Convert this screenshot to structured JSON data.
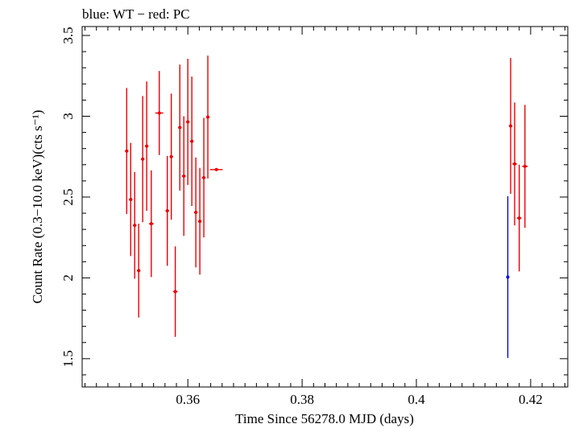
{
  "chart_data": {
    "type": "scatter",
    "title": "blue: WT − red: PC",
    "xlabel": "Time Since 56278.0 MJD (days)",
    "ylabel": "Count Rate (0.3−10.0 keV)(cts s⁻¹)",
    "xlim": [
      0.3415,
      0.4265
    ],
    "ylim": [
      1.325,
      3.555
    ],
    "x_ticks": [
      0.36,
      0.38,
      0.4,
      0.42
    ],
    "x_tick_labels": [
      "0.36",
      "0.38",
      "0.4",
      "0.42"
    ],
    "y_ticks": [
      1.5,
      2.0,
      2.5,
      3.0,
      3.5
    ],
    "y_tick_labels": [
      "1.5",
      "2",
      "2.5",
      "3",
      "3.5"
    ],
    "grid": false,
    "series": [
      {
        "color": "#ee0000",
        "points": [
          {
            "x": 0.3493,
            "y": 2.785,
            "xerr": 0.0003,
            "yerr_lo": 0.39,
            "yerr_hi": 0.39
          },
          {
            "x": 0.35,
            "y": 2.485,
            "xerr": 0.0003,
            "yerr_lo": 0.35,
            "yerr_hi": 0.35
          },
          {
            "x": 0.3507,
            "y": 2.325,
            "xerr": 0.0003,
            "yerr_lo": 0.33,
            "yerr_hi": 0.33
          },
          {
            "x": 0.3514,
            "y": 2.045,
            "xerr": 0.0003,
            "yerr_lo": 0.29,
            "yerr_hi": 0.29
          },
          {
            "x": 0.3521,
            "y": 2.735,
            "xerr": 0.0003,
            "yerr_lo": 0.39,
            "yerr_hi": 0.39
          },
          {
            "x": 0.3528,
            "y": 2.815,
            "xerr": 0.0003,
            "yerr_lo": 0.4,
            "yerr_hi": 0.4
          },
          {
            "x": 0.3536,
            "y": 2.335,
            "xerr": 0.0004,
            "yerr_lo": 0.33,
            "yerr_hi": 0.33
          },
          {
            "x": 0.355,
            "y": 3.02,
            "xerr": 0.0007,
            "yerr_lo": 0.26,
            "yerr_hi": 0.26
          },
          {
            "x": 0.3564,
            "y": 2.415,
            "xerr": 0.0003,
            "yerr_lo": 0.34,
            "yerr_hi": 0.34
          },
          {
            "x": 0.3571,
            "y": 2.75,
            "xerr": 0.0003,
            "yerr_lo": 0.39,
            "yerr_hi": 0.39
          },
          {
            "x": 0.3578,
            "y": 1.915,
            "xerr": 0.0004,
            "yerr_lo": 0.28,
            "yerr_hi": 0.28
          },
          {
            "x": 0.3586,
            "y": 2.93,
            "xerr": 0.0003,
            "yerr_lo": 0.39,
            "yerr_hi": 0.39
          },
          {
            "x": 0.3593,
            "y": 2.63,
            "xerr": 0.0003,
            "yerr_lo": 0.37,
            "yerr_hi": 0.37
          },
          {
            "x": 0.36,
            "y": 2.965,
            "xerr": 0.0003,
            "yerr_lo": 0.39,
            "yerr_hi": 0.39
          },
          {
            "x": 0.3607,
            "y": 2.845,
            "xerr": 0.0003,
            "yerr_lo": 0.4,
            "yerr_hi": 0.4
          },
          {
            "x": 0.3614,
            "y": 2.405,
            "xerr": 0.0003,
            "yerr_lo": 0.34,
            "yerr_hi": 0.34
          },
          {
            "x": 0.3621,
            "y": 2.35,
            "xerr": 0.0003,
            "yerr_lo": 0.33,
            "yerr_hi": 0.33
          },
          {
            "x": 0.3628,
            "y": 2.62,
            "xerr": 0.0003,
            "yerr_lo": 0.37,
            "yerr_hi": 0.37
          },
          {
            "x": 0.3635,
            "y": 2.995,
            "xerr": 0.0003,
            "yerr_lo": 0.38,
            "yerr_hi": 0.38
          },
          {
            "x": 0.365,
            "y": 2.67,
            "xerr": 0.0011,
            "yerr_lo": 0.0,
            "yerr_hi": 0.0
          },
          {
            "x": 0.4165,
            "y": 2.94,
            "xerr": 0.0003,
            "yerr_lo": 0.42,
            "yerr_hi": 0.42
          },
          {
            "x": 0.4172,
            "y": 2.705,
            "xerr": 0.0004,
            "yerr_lo": 0.38,
            "yerr_hi": 0.38
          },
          {
            "x": 0.418,
            "y": 2.37,
            "xerr": 0.0004,
            "yerr_lo": 0.33,
            "yerr_hi": 0.33
          },
          {
            "x": 0.419,
            "y": 2.69,
            "xerr": 0.0005,
            "yerr_lo": 0.38,
            "yerr_hi": 0.38
          }
        ]
      },
      {
        "color": "#0000ee",
        "points": [
          {
            "x": 0.416,
            "y": 2.005,
            "xerr": 0.0001,
            "yerr_lo": 0.5,
            "yerr_hi": 0.5
          }
        ]
      }
    ]
  }
}
